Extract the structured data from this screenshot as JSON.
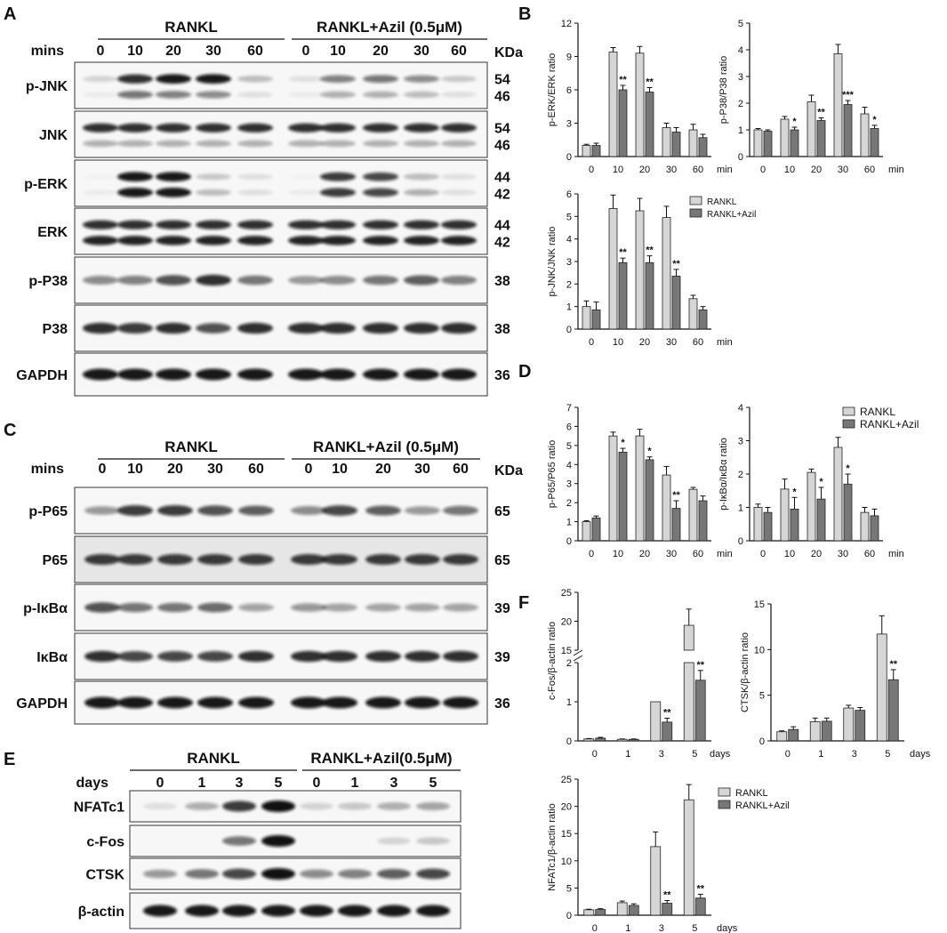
{
  "figure": {
    "panel_letters": [
      "A",
      "B",
      "C",
      "D",
      "E",
      "F"
    ],
    "colors": {
      "rankl": "#d6d6d6",
      "azil": "#777777",
      "edge": "#222222",
      "band": "#0b0b0b"
    }
  },
  "panel_a": {
    "letter": "A",
    "group1": "RANKL",
    "group2": "RANKL+Azil (0.5μM)",
    "row_label": "mins",
    "kda_label": "KDa",
    "lanes": [
      "0",
      "10",
      "20",
      "30",
      "60",
      "0",
      "10",
      "20",
      "30",
      "60"
    ],
    "blots": [
      {
        "label": "p-JNK",
        "kda": [
          "54",
          "46"
        ],
        "bands": [
          [
            0.15,
            0.85,
            0.95,
            0.95,
            0.25,
            0.1,
            0.5,
            0.55,
            0.45,
            0.2
          ],
          [
            0.05,
            0.55,
            0.5,
            0.45,
            0.1,
            0.05,
            0.3,
            0.3,
            0.25,
            0.1
          ]
        ]
      },
      {
        "label": "JNK",
        "kda": [
          "54",
          "46"
        ],
        "bands": [
          [
            0.85,
            0.85,
            0.85,
            0.85,
            0.85,
            0.85,
            0.85,
            0.85,
            0.85,
            0.85
          ],
          [
            0.3,
            0.3,
            0.3,
            0.3,
            0.3,
            0.3,
            0.3,
            0.3,
            0.3,
            0.3
          ]
        ]
      },
      {
        "label": "p-ERK",
        "kda": [
          "44",
          "42"
        ],
        "bands": [
          [
            0.02,
            0.95,
            0.95,
            0.2,
            0.1,
            0.02,
            0.8,
            0.75,
            0.25,
            0.1
          ],
          [
            0.05,
            0.95,
            0.95,
            0.25,
            0.1,
            0.05,
            0.8,
            0.75,
            0.3,
            0.1
          ]
        ]
      },
      {
        "label": "ERK",
        "kda": [
          "44",
          "42"
        ],
        "bands": [
          [
            0.85,
            0.85,
            0.85,
            0.85,
            0.85,
            0.85,
            0.85,
            0.85,
            0.85,
            0.85
          ],
          [
            0.9,
            0.9,
            0.9,
            0.9,
            0.9,
            0.9,
            0.9,
            0.9,
            0.9,
            0.9
          ]
        ]
      },
      {
        "label": "p-P38",
        "kda": [
          "38"
        ],
        "bands": [
          [
            0.45,
            0.5,
            0.7,
            0.85,
            0.55,
            0.4,
            0.45,
            0.55,
            0.65,
            0.5
          ]
        ]
      },
      {
        "label": "P38",
        "kda": [
          "38"
        ],
        "bands": [
          [
            0.85,
            0.8,
            0.85,
            0.7,
            0.85,
            0.85,
            0.85,
            0.85,
            0.85,
            0.85
          ]
        ]
      },
      {
        "label": "GAPDH",
        "kda": [
          "36"
        ],
        "bands": [
          [
            0.95,
            0.95,
            0.95,
            0.95,
            0.95,
            0.95,
            0.95,
            0.95,
            0.95,
            0.95
          ]
        ]
      }
    ]
  },
  "panel_c": {
    "letter": "C",
    "group1": "RANKL",
    "group2": "RANKL+Azil (0.5μM)",
    "row_label": "mins",
    "kda_label": "KDa",
    "lanes": [
      "0",
      "10",
      "20",
      "30",
      "60",
      "0",
      "10",
      "20",
      "30",
      "60"
    ],
    "blots": [
      {
        "label": "p-P65",
        "kda": [
          "65"
        ],
        "bands": [
          [
            0.4,
            0.8,
            0.8,
            0.7,
            0.65,
            0.45,
            0.75,
            0.65,
            0.4,
            0.55
          ]
        ]
      },
      {
        "label": "P65",
        "kda": [
          "65"
        ],
        "bands": [
          [
            0.8,
            0.8,
            0.8,
            0.8,
            0.8,
            0.8,
            0.8,
            0.8,
            0.8,
            0.8
          ]
        ]
      },
      {
        "label": "p-IκBα",
        "kda": [
          "39"
        ],
        "bands": [
          [
            0.7,
            0.55,
            0.55,
            0.6,
            0.35,
            0.4,
            0.35,
            0.35,
            0.35,
            0.35
          ]
        ]
      },
      {
        "label": "IκBα",
        "kda": [
          "39"
        ],
        "bands": [
          [
            0.85,
            0.75,
            0.75,
            0.75,
            0.85,
            0.85,
            0.85,
            0.85,
            0.85,
            0.85
          ]
        ]
      },
      {
        "label": "GAPDH",
        "kda": [
          "36"
        ],
        "bands": [
          [
            0.95,
            0.95,
            0.95,
            0.95,
            0.95,
            0.95,
            0.95,
            0.95,
            0.95,
            0.95
          ]
        ]
      }
    ]
  },
  "panel_e": {
    "letter": "E",
    "group1": "RANKL",
    "group2": "RANKL+Azil(0.5μM)",
    "row_label": "days",
    "lanes": [
      "0",
      "1",
      "3",
      "5",
      "0",
      "1",
      "3",
      "5"
    ],
    "blots": [
      {
        "label": "NFATc1",
        "bands": [
          [
            0.1,
            0.3,
            0.8,
            0.98,
            0.15,
            0.2,
            0.3,
            0.35
          ]
        ]
      },
      {
        "label": "c-Fos",
        "bands": [
          [
            0.0,
            0.0,
            0.55,
            0.98,
            0.0,
            0.0,
            0.15,
            0.2
          ]
        ]
      },
      {
        "label": "CTSK",
        "bands": [
          [
            0.4,
            0.55,
            0.75,
            0.98,
            0.45,
            0.5,
            0.65,
            0.75
          ]
        ]
      },
      {
        "label": "β-actin",
        "bands": [
          [
            0.95,
            0.95,
            0.95,
            0.95,
            0.95,
            0.95,
            0.95,
            0.95
          ]
        ]
      }
    ]
  },
  "legend": {
    "rankl": "RANKL",
    "azil": "RANKL+Azil"
  },
  "chart_data": [
    {
      "id": "perk",
      "type": "bar",
      "panel": "B",
      "ylabel": "p-ERK/ERK ratio",
      "unit": "min",
      "categories": [
        "0",
        "10",
        "20",
        "30",
        "60"
      ],
      "ylim": [
        0,
        12
      ],
      "yticks": [
        0,
        3,
        6,
        9,
        12
      ],
      "series": [
        {
          "name": "RANKL",
          "values": [
            1.0,
            9.4,
            9.3,
            2.6,
            2.4
          ],
          "err": [
            0.1,
            0.4,
            0.6,
            0.4,
            0.5
          ]
        },
        {
          "name": "RANKL+Azil",
          "values": [
            1.0,
            6.0,
            5.8,
            2.2,
            1.7
          ],
          "err": [
            0.2,
            0.4,
            0.4,
            0.4,
            0.3
          ]
        }
      ],
      "marks": [
        "",
        "**",
        "**",
        "",
        ""
      ]
    },
    {
      "id": "pp38",
      "type": "bar",
      "panel": "B",
      "ylabel": "p-P38/P38 ratio",
      "unit": "min",
      "categories": [
        "0",
        "10",
        "20",
        "30",
        "60"
      ],
      "ylim": [
        0,
        5
      ],
      "yticks": [
        0,
        1,
        2,
        3,
        4,
        5
      ],
      "series": [
        {
          "name": "RANKL",
          "values": [
            1.0,
            1.4,
            2.05,
            3.85,
            1.6
          ],
          "err": [
            0.05,
            0.1,
            0.25,
            0.35,
            0.25
          ]
        },
        {
          "name": "RANKL+Azil",
          "values": [
            0.95,
            1.0,
            1.35,
            1.95,
            1.05
          ],
          "err": [
            0.05,
            0.1,
            0.1,
            0.15,
            0.12
          ]
        }
      ],
      "marks": [
        "",
        "*",
        "**",
        "***",
        "*"
      ]
    },
    {
      "id": "pjnk",
      "type": "bar",
      "panel": "B",
      "ylabel": "p-JNK/JNK ratio",
      "unit": "min",
      "categories": [
        "0",
        "10",
        "20",
        "30",
        "60"
      ],
      "ylim": [
        0,
        6
      ],
      "yticks": [
        0,
        1,
        2,
        3,
        4,
        5,
        6
      ],
      "series": [
        {
          "name": "RANKL",
          "values": [
            1.0,
            5.35,
            5.25,
            4.95,
            1.35
          ],
          "err": [
            0.25,
            0.6,
            0.55,
            0.5,
            0.15
          ]
        },
        {
          "name": "RANKL+Azil",
          "values": [
            0.85,
            2.95,
            2.95,
            2.35,
            0.85
          ],
          "err": [
            0.35,
            0.2,
            0.3,
            0.3,
            0.15
          ]
        }
      ],
      "marks": [
        "",
        "**",
        "**",
        "**",
        ""
      ]
    },
    {
      "id": "pp65",
      "type": "bar",
      "panel": "D",
      "ylabel": "p-P65/P65 ratio",
      "unit": "min",
      "categories": [
        "0",
        "10",
        "20",
        "30",
        "60"
      ],
      "ylim": [
        0,
        7
      ],
      "yticks": [
        0,
        1,
        2,
        3,
        4,
        5,
        6,
        7
      ],
      "series": [
        {
          "name": "RANKL",
          "values": [
            1.0,
            5.5,
            5.5,
            3.45,
            2.7
          ],
          "err": [
            0.05,
            0.2,
            0.35,
            0.45,
            0.1
          ]
        },
        {
          "name": "RANKL+Azil",
          "values": [
            1.2,
            4.65,
            4.25,
            1.7,
            2.1
          ],
          "err": [
            0.1,
            0.2,
            0.15,
            0.4,
            0.25
          ]
        }
      ],
      "marks": [
        "",
        "*",
        "*",
        "**",
        ""
      ]
    },
    {
      "id": "pikba",
      "type": "bar",
      "panel": "D",
      "ylabel": "p-IκBα/IκBα ratio",
      "unit": "min",
      "categories": [
        "0",
        "10",
        "20",
        "30",
        "60"
      ],
      "ylim": [
        0,
        4
      ],
      "yticks": [
        0,
        1,
        2,
        3,
        4
      ],
      "series": [
        {
          "name": "RANKL",
          "values": [
            1.0,
            1.55,
            2.05,
            2.8,
            0.85
          ],
          "err": [
            0.1,
            0.3,
            0.1,
            0.3,
            0.15
          ]
        },
        {
          "name": "RANKL+Azil",
          "values": [
            0.85,
            0.95,
            1.25,
            1.7,
            0.75
          ],
          "err": [
            0.15,
            0.35,
            0.35,
            0.3,
            0.2
          ]
        }
      ],
      "marks": [
        "",
        "*",
        "*",
        "*",
        ""
      ]
    },
    {
      "id": "cfos",
      "type": "bar",
      "panel": "F",
      "ylabel": "c-Fos/β-actin ratio",
      "unit": "days",
      "categories": [
        "0",
        "1",
        "3",
        "5"
      ],
      "broken_axis": true,
      "lower_ylim": [
        0,
        2
      ],
      "upper_ylim": [
        15,
        25
      ],
      "yticks_lower": [
        0,
        1,
        2
      ],
      "yticks_upper": [
        15,
        20,
        25
      ],
      "series": [
        {
          "name": "RANKL",
          "values": [
            0.05,
            0.04,
            1.0,
            19.3
          ],
          "err": [
            0.01,
            0.01,
            0.0,
            2.8
          ]
        },
        {
          "name": "RANKL+Azil",
          "values": [
            0.07,
            0.04,
            0.48,
            1.55
          ],
          "err": [
            0.02,
            0.01,
            0.1,
            0.25
          ]
        }
      ],
      "marks": [
        "",
        "",
        "**",
        "**"
      ]
    },
    {
      "id": "ctsk",
      "type": "bar",
      "panel": "F",
      "ylabel": "CTSK/β-actin ratio",
      "unit": "days",
      "categories": [
        "0",
        "1",
        "3",
        "5"
      ],
      "ylim": [
        0,
        15
      ],
      "yticks": [
        0,
        5,
        10,
        15
      ],
      "series": [
        {
          "name": "RANKL",
          "values": [
            1.0,
            2.1,
            3.6,
            11.7
          ],
          "err": [
            0.1,
            0.4,
            0.3,
            2.0
          ]
        },
        {
          "name": "RANKL+Azil",
          "values": [
            1.25,
            2.15,
            3.35,
            6.7
          ],
          "err": [
            0.3,
            0.35,
            0.3,
            1.1
          ]
        }
      ],
      "marks": [
        "",
        "",
        "",
        "**"
      ]
    },
    {
      "id": "nfatc1",
      "type": "bar",
      "panel": "F",
      "ylabel": "NFATc1/β-actin ratio",
      "unit": "days",
      "categories": [
        "0",
        "1",
        "3",
        "5"
      ],
      "ylim": [
        0,
        25
      ],
      "yticks": [
        0,
        5,
        10,
        15,
        20,
        25
      ],
      "series": [
        {
          "name": "RANKL",
          "values": [
            1.0,
            2.3,
            12.6,
            21.2
          ],
          "err": [
            0.1,
            0.3,
            2.7,
            2.8
          ]
        },
        {
          "name": "RANKL+Azil",
          "values": [
            1.05,
            1.8,
            2.2,
            3.15
          ],
          "err": [
            0.15,
            0.3,
            0.5,
            0.7
          ]
        }
      ],
      "marks": [
        "",
        "",
        "**",
        "**"
      ]
    }
  ]
}
